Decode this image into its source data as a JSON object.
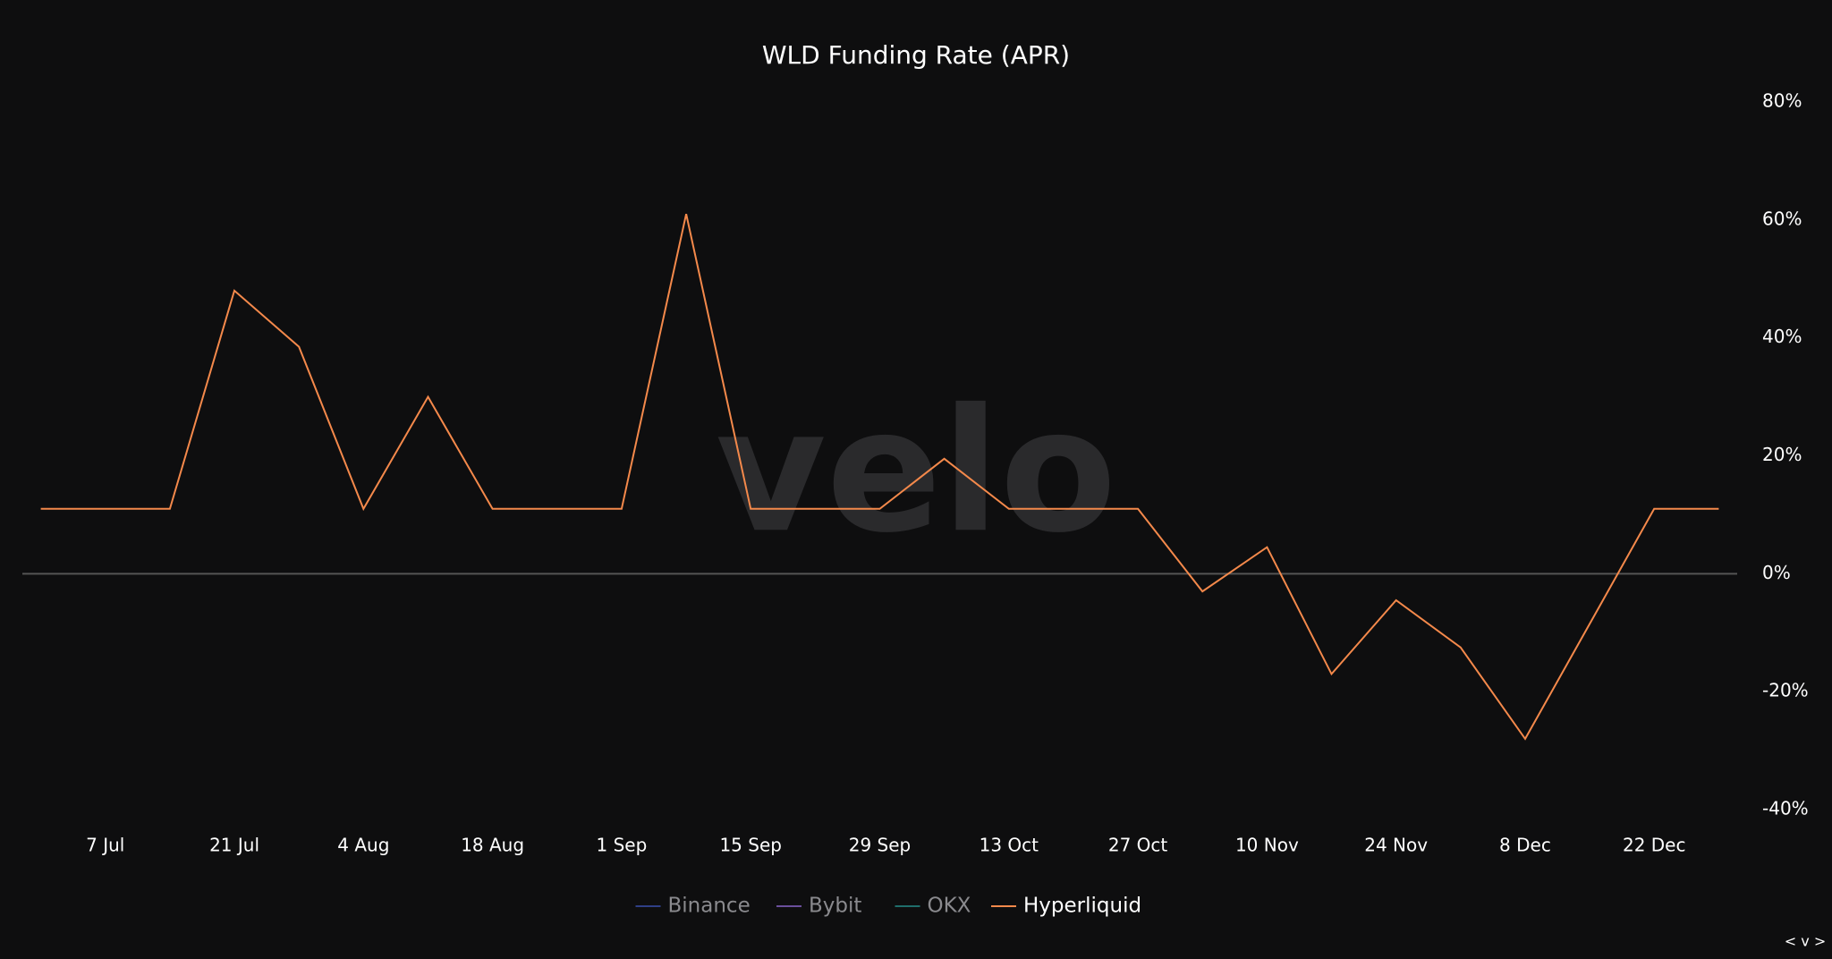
{
  "chart_data": {
    "type": "line",
    "title": "WLD Funding Rate (APR)",
    "watermark": "velo",
    "corner_label": "< v >",
    "x": [
      "30 Jun",
      "7 Jul",
      "14 Jul",
      "21 Jul",
      "28 Jul",
      "4 Aug",
      "11 Aug",
      "18 Aug",
      "25 Aug",
      "1 Sep",
      "8 Sep",
      "15 Sep",
      "22 Sep",
      "29 Sep",
      "6 Oct",
      "13 Oct",
      "20 Oct",
      "27 Oct",
      "3 Nov",
      "10 Nov",
      "17 Nov",
      "24 Nov",
      "1 Dec",
      "8 Dec",
      "15 Dec",
      "22 Dec",
      "29 Dec"
    ],
    "xlim": [
      "28 Jun",
      "31 Dec"
    ],
    "xticks": [
      "7 Jul",
      "21 Jul",
      "4 Aug",
      "18 Aug",
      "1 Sep",
      "15 Sep",
      "29 Sep",
      "13 Oct",
      "27 Oct",
      "10 Nov",
      "24 Nov",
      "8 Dec",
      "22 Dec"
    ],
    "ylim": [
      -40,
      80
    ],
    "yticks": [
      {
        "value": 80,
        "label": "80%"
      },
      {
        "value": 60,
        "label": "60%"
      },
      {
        "value": 40,
        "label": "40%"
      },
      {
        "value": 20,
        "label": "20%"
      },
      {
        "value": 0,
        "label": "0%"
      },
      {
        "value": -20,
        "label": "-20%"
      },
      {
        "value": -40,
        "label": "-40%"
      }
    ],
    "grid": false,
    "zero_line": true,
    "legend": "bottom",
    "series": [
      {
        "name": "Binance",
        "color": "#2f3f86",
        "visible": false
      },
      {
        "name": "Bybit",
        "color": "#6a4f9c",
        "visible": false
      },
      {
        "name": "OKX",
        "color": "#1f6e6b",
        "visible": false
      },
      {
        "name": "Hyperliquid",
        "color": "#f4894b",
        "visible": true,
        "values": [
          11,
          11,
          11,
          48,
          38.5,
          11,
          30,
          11,
          11,
          11,
          61,
          11,
          11,
          11,
          19.5,
          11,
          11,
          11,
          -3,
          4.5,
          -17,
          -4.5,
          -12.5,
          -28,
          -8.5,
          11,
          11
        ]
      }
    ]
  }
}
